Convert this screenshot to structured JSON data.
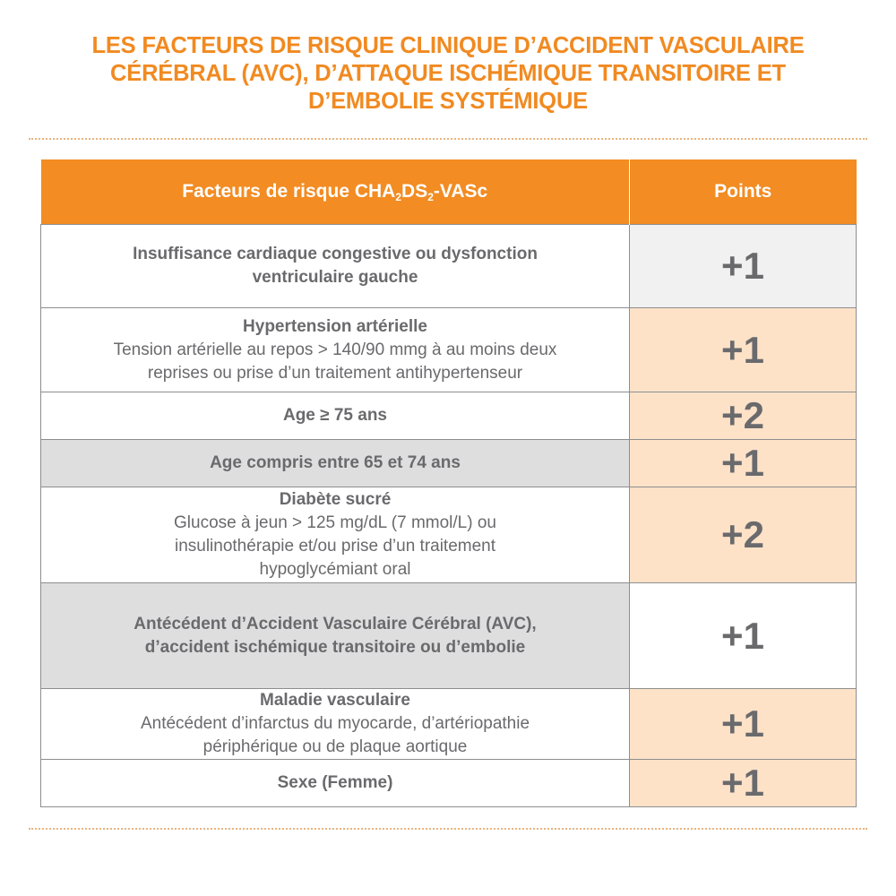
{
  "title": {
    "line1": "LES FACTEURS DE RISQUE CLINIQUE D’ACCIDENT VASCULAIRE",
    "line2": "CÉRÉBRAL (AVC), D’ATTAQUE ISCHÉMIQUE TRANSITOIRE ET",
    "line3": "D’EMBOLIE SYSTÉMIQUE"
  },
  "table": {
    "header": {
      "factor_prefix": "Facteurs de risque CHA",
      "sub1": "2",
      "factor_mid": "DS",
      "sub2": "2",
      "factor_suffix": "-VASc",
      "points": "Points"
    },
    "rows": [
      {
        "title_line1": "Insuffisance cardiaque congestive ou dysfonction",
        "title_line2": "ventriculaire gauche",
        "points": "+1"
      },
      {
        "title": "Hypertension artérielle",
        "desc_line1": "Tension artérielle au repos > 140/90 mmg à au moins deux",
        "desc_line2": "reprises ou prise d’un traitement antihypertenseur",
        "points": "+1"
      },
      {
        "title": "Age ≥ 75 ans",
        "points": "+2"
      },
      {
        "title": "Age compris entre 65 et 74 ans",
        "points": "+1"
      },
      {
        "title": "Diabète sucré",
        "desc_line1": "Glucose à jeun > 125 mg/dL (7 mmol/L) ou",
        "desc_line2": "insulinothérapie et/ou prise d’un traitement",
        "desc_line3": "hypoglycémiant oral",
        "points": "+2"
      },
      {
        "title_line1": "Antécédent d’Accident Vasculaire Cérébral (AVC),",
        "title_line2": "d’accident ischémique transitoire ou d’embolie",
        "points": "+1"
      },
      {
        "title": "Maladie vasculaire",
        "desc_line1": "Antécédent d’infarctus du myocarde, d’artériopathie",
        "desc_line2": "périphérique ou de plaque aortique",
        "points": "+1"
      },
      {
        "title": "Sexe (Femme)",
        "points": "+1"
      }
    ]
  },
  "colors": {
    "accent_orange": "#f28c23",
    "peach": "#fde2c8",
    "gray": "#dededf",
    "text": "#6a6a6d"
  }
}
